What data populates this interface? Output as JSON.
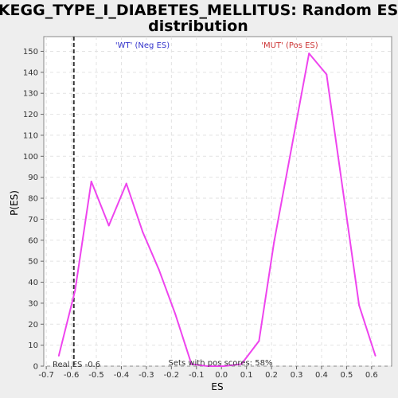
{
  "chart_data": {
    "type": "line",
    "title_line1": "KEGG_TYPE_I_DIABETES_MELLITUS: Random ES",
    "title_line2": "distribution",
    "xlabel": "ES",
    "ylabel": "P(ES)",
    "xlim": [
      -0.71,
      0.68
    ],
    "ylim": [
      0,
      157
    ],
    "x_ticks": [
      "-0.7",
      "-0.6",
      "-0.5",
      "-0.4",
      "-0.3",
      "-0.2",
      "-0.1",
      "0.0",
      "0.1",
      "0.2",
      "0.3",
      "0.4",
      "0.5",
      "0.6"
    ],
    "y_ticks": [
      "0",
      "10",
      "20",
      "30",
      "40",
      "50",
      "60",
      "70",
      "80",
      "90",
      "100",
      "110",
      "120",
      "130",
      "140",
      "150"
    ],
    "grid": true,
    "series": [
      {
        "color": "#ee44ee",
        "x": [
          -0.65,
          -0.585,
          -0.52,
          -0.45,
          -0.38,
          -0.315,
          -0.25,
          -0.185,
          -0.12,
          -0.055,
          0.01,
          0.08,
          0.15,
          0.21,
          0.28,
          0.35,
          0.42,
          0.485,
          0.55,
          0.615
        ],
        "y": [
          5,
          36,
          88,
          67,
          87,
          64,
          46,
          25,
          1,
          0,
          0,
          1,
          12,
          59,
          104,
          149,
          139,
          84,
          29,
          5
        ]
      }
    ],
    "real_es": {
      "value": -0.59,
      "label": "Real ES -0.6"
    },
    "annotations": {
      "neg": {
        "text": "'WT' (Neg ES)",
        "color": "#3333cc"
      },
      "pos": {
        "text": "'MUT' (Pos ES)",
        "color": "#cc3333"
      },
      "bottom": {
        "text": "Sets with pos scores: 58%"
      }
    }
  }
}
